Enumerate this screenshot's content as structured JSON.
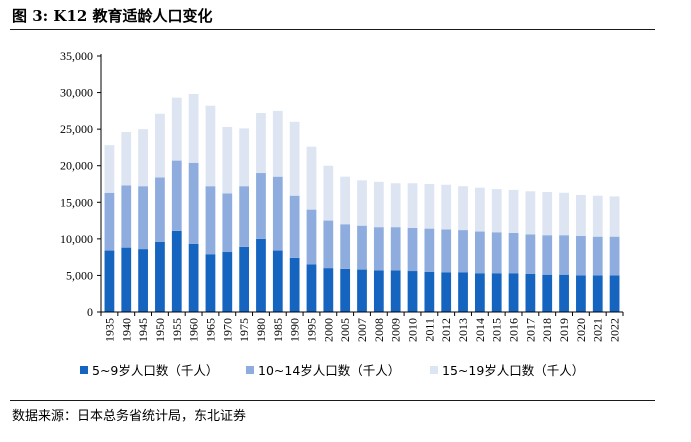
{
  "header": {
    "title": "图 3: K12 教育适龄人口变化"
  },
  "footer": {
    "source": "数据来源：日本总务省统计局，东北证券"
  },
  "colors": {
    "series_5_9": "#1565c0",
    "series_10_14": "#8eadde",
    "series_15_19": "#dde4f2",
    "axis": "#000000"
  },
  "chart_data": {
    "type": "bar",
    "stacked": true,
    "categories": [
      "1935",
      "1940",
      "1945",
      "1950",
      "1955",
      "1960",
      "1965",
      "1970",
      "1975",
      "1980",
      "1985",
      "1990",
      "1995",
      "2000",
      "2005",
      "2007",
      "2008",
      "2009",
      "2010",
      "2011",
      "2012",
      "2013",
      "2014",
      "2015",
      "2016",
      "2017",
      "2018",
      "2019",
      "2020",
      "2021",
      "2022"
    ],
    "series": [
      {
        "name": "5~9岁人口数（千人）",
        "values": [
          8400,
          8800,
          8600,
          9600,
          11100,
          9300,
          7900,
          8200,
          8900,
          10000,
          8400,
          7400,
          6500,
          6000,
          5900,
          5800,
          5700,
          5700,
          5600,
          5500,
          5400,
          5400,
          5300,
          5300,
          5300,
          5200,
          5100,
          5100,
          5000,
          5000,
          5000
        ]
      },
      {
        "name": "10~14岁人口数（千人）",
        "values": [
          7900,
          8500,
          8600,
          8800,
          9600,
          11100,
          9300,
          8000,
          8300,
          9000,
          10100,
          8500,
          7500,
          6500,
          6100,
          6000,
          5900,
          5900,
          5900,
          5900,
          5900,
          5800,
          5700,
          5600,
          5500,
          5400,
          5400,
          5400,
          5400,
          5300,
          5300
        ]
      },
      {
        "name": "15~19岁人口数（千人）",
        "values": [
          6500,
          7300,
          7800,
          8700,
          8600,
          9400,
          11000,
          9100,
          7900,
          8200,
          9000,
          10100,
          8600,
          7500,
          6500,
          6200,
          6200,
          6000,
          6100,
          6100,
          6100,
          6000,
          6000,
          5900,
          5900,
          5900,
          5900,
          5800,
          5600,
          5600,
          5500
        ]
      }
    ],
    "yticks": [
      0,
      5000,
      10000,
      15000,
      20000,
      25000,
      30000,
      35000
    ],
    "ytick_labels": [
      "0",
      "5,000",
      "10,000",
      "15,000",
      "20,000",
      "25,000",
      "30,000",
      "35,000"
    ],
    "ylim": [
      0,
      35000
    ],
    "legend": "bottom",
    "grid": false
  }
}
